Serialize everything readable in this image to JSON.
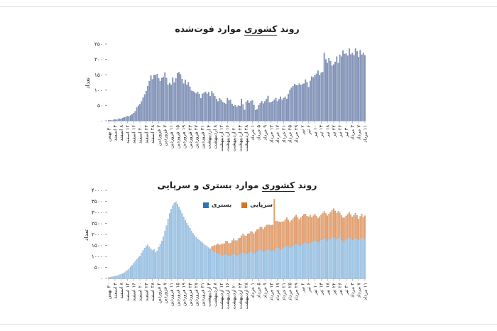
{
  "page": {
    "background": "#ffffff",
    "rule_color": "#e3e3e3"
  },
  "chart_data": [
    {
      "type": "bar",
      "id": "national-deaths-trend",
      "title": {
        "prefix": "روند ",
        "underlined": "کشوری",
        "suffix": " موارد فوت‌شده"
      },
      "ylabel": "تعداد",
      "xlabel": "",
      "grid": false,
      "legend_position": "none",
      "y_axis": {
        "min": 0,
        "max": 250,
        "step": 50,
        "tick_labels": [
          "۰",
          "۵۰",
          "۱۰۰",
          "۱۵۰",
          "۲۰۰",
          "۲۵۰"
        ]
      },
      "x_axis": {
        "label_every": 4,
        "labels": [
          "۳۰ بهمن",
          "۴ اسفند",
          "۸ اسفند",
          "۱۲ اسفند",
          "۱۶ اسفند",
          "۲۰ اسفند",
          "۲۴ اسفند",
          "۲۸ اسفند",
          "۳ فروردین",
          "۷ فروردین",
          "۱۱ فروردین",
          "۱۵ فروردین",
          "۱۹ فروردین",
          "۲۳ فروردین",
          "۲۷ فروردین",
          "۳۱ فروردین",
          "۴ اردیبهشت",
          "۸ اردیبهشت",
          "۱۲ اردیبهشت",
          "۱۶ اردیبهشت",
          "۲۰ اردیبهشت",
          "۲۴ اردیبهشت",
          "۲۸ اردیبهشت",
          "۱ خرداد",
          "۵ خرداد",
          "۹ خرداد",
          "۱۳ خرداد",
          "۱۷ خرداد",
          "۲۱ خرداد",
          "۲۵ خرداد",
          "۲۹ خرداد",
          "۲ تیر",
          "۶ تیر",
          "۱۰ تیر",
          "۱۴ تیر",
          "۱۸ تیر",
          "۲۲ تیر",
          "۲۶ تیر",
          "۳۰ تیر",
          "۳ مرداد",
          "۷ مرداد",
          "۱۱ مرداد"
        ]
      },
      "series": [
        {
          "name": "فوت‌شده",
          "color": "#8b9cc0",
          "border_color": "#5f729e",
          "values": [
            2,
            2,
            1,
            3,
            4,
            3,
            5,
            7,
            6,
            9,
            11,
            12,
            15,
            14,
            17,
            21,
            25,
            31,
            43,
            49,
            54,
            63,
            75,
            85,
            97,
            113,
            129,
            147,
            135,
            149,
            149,
            152,
            138,
            129,
            139,
            143,
            157,
            139,
            117,
            123,
            117,
            141,
            124,
            138,
            155,
            158,
            151,
            136,
            121,
            133,
            117,
            125,
            111,
            98,
            96,
            92,
            89,
            94,
            87,
            73,
            88,
            91,
            94,
            88,
            93,
            80,
            96,
            89,
            80,
            71,
            63,
            73,
            68,
            61,
            58,
            55,
            74,
            66,
            68,
            55,
            48,
            51,
            45,
            50,
            48,
            71,
            53,
            35,
            62,
            66,
            58,
            64,
            66,
            51,
            34,
            37,
            50,
            57,
            64,
            56,
            63,
            71,
            81,
            59,
            60,
            63,
            68,
            74,
            63,
            70,
            78,
            68,
            74,
            78,
            71,
            87,
            100,
            107,
            113,
            120,
            115,
            115,
            121,
            116,
            119,
            121,
            134,
            125,
            109,
            130,
            144,
            141,
            148,
            153,
            163,
            148,
            156,
            159,
            221,
            200,
            188,
            203,
            194,
            179,
            183,
            192,
            209,
            188,
            215,
            209,
            229,
            217,
            219,
            212,
            235,
            216,
            221,
            213,
            235,
            226,
            208,
            230,
            215,
            221,
            213
          ]
        }
      ]
    },
    {
      "type": "bar",
      "id": "national-hospitalized-outpatient-trend",
      "title": {
        "prefix": "روند ",
        "underlined": "کشوری",
        "suffix": " موارد بستری و سرپایی"
      },
      "ylabel": "تعداد",
      "xlabel": "",
      "grid": false,
      "stacked": true,
      "legend_position": "top-inside",
      "legend": [
        {
          "label": "بستری",
          "swatch": "#2e75b6"
        },
        {
          "label": "سرپایی",
          "swatch": "#d9731f"
        }
      ],
      "y_axis": {
        "min": 0,
        "max": 4000,
        "step": 500,
        "tick_labels": [
          "۰",
          "۵۰۰",
          "۱۰۰۰",
          "۱۵۰۰",
          "۲۰۰۰",
          "۲۵۰۰",
          "۳۰۰۰",
          "۳۵۰۰",
          "۴۰۰۰"
        ]
      },
      "x_axis": {
        "label_every": 4,
        "labels": [
          "۳۰ بهمن",
          "۴ اسفند",
          "۸ اسفند",
          "۱۲ اسفند",
          "۱۶ اسفند",
          "۲۰ اسفند",
          "۲۴ اسفند",
          "۲۸ اسفند",
          "۳ فروردین",
          "۷ فروردین",
          "۱۱ فروردین",
          "۱۵ فروردین",
          "۱۹ فروردین",
          "۲۳ فروردین",
          "۲۷ فروردین",
          "۳۱ فروردین",
          "۴ اردیبهشت",
          "۸ اردیبهشت",
          "۱۲ اردیبهشت",
          "۱۶ اردیبهشت",
          "۲۰ اردیبهشت",
          "۲۴ اردیبهشت",
          "۲۸ اردیبهشت",
          "۱ خرداد",
          "۵ خرداد",
          "۹ خرداد",
          "۱۳ خرداد",
          "۱۷ خرداد",
          "۲۱ خرداد",
          "۲۵ خرداد",
          "۲۹ خرداد",
          "۲ تیر",
          "۶ تیر",
          "۱۰ تیر",
          "۱۴ تیر",
          "۱۸ تیر",
          "۲۲ تیر",
          "۲۶ تیر",
          "۳۰ تیر",
          "۳ مرداد",
          "۷ مرداد",
          "۱۱ مرداد"
        ]
      },
      "series": [
        {
          "name": "بستری",
          "color": "#a8cbe8",
          "border_color": "#74a7d4",
          "values": [
            45,
            60,
            70,
            85,
            100,
            120,
            140,
            165,
            190,
            220,
            260,
            310,
            370,
            440,
            520,
            600,
            690,
            780,
            870,
            950,
            1020,
            1150,
            1270,
            1380,
            1460,
            1520,
            1430,
            1350,
            1270,
            1320,
            1180,
            1250,
            1420,
            1560,
            1700,
            1900,
            2150,
            2400,
            2700,
            2950,
            3150,
            3300,
            3420,
            3480,
            3380,
            3250,
            3100,
            2950,
            2800,
            2650,
            2520,
            2400,
            2280,
            2150,
            2050,
            1950,
            1870,
            1800,
            1740,
            1680,
            1620,
            1560,
            1500,
            1450,
            1400,
            1350,
            1300,
            1260,
            1220,
            1180,
            1150,
            1120,
            1090,
            1060,
            1100,
            1150,
            1080,
            1020,
            1060,
            1110,
            1160,
            1100,
            1040,
            1090,
            1140,
            1190,
            1230,
            1170,
            1110,
            1160,
            1210,
            1260,
            1200,
            1140,
            1190,
            1240,
            1290,
            1340,
            1280,
            1220,
            1270,
            1320,
            1370,
            1310,
            1250,
            1300,
            1250,
            1400,
            1450,
            1390,
            1330,
            1380,
            1430,
            1480,
            1530,
            1470,
            1410,
            1460,
            1510,
            1560,
            1610,
            1550,
            1490,
            1540,
            1590,
            1640,
            1690,
            1630,
            1570,
            1620,
            1670,
            1720,
            1770,
            1710,
            1650,
            1700,
            1750,
            1800,
            1850,
            1790,
            1730,
            1780,
            1830,
            1880,
            1930,
            1870,
            1810,
            1860,
            1910,
            1760,
            1700,
            1740,
            1790,
            1840,
            1890,
            1830,
            1770,
            1820,
            1870,
            1810,
            1750,
            1820,
            1880,
            1800,
            1840
          ]
        },
        {
          "name": "سرپایی",
          "color": "#e8a878",
          "border_color": "#d08048",
          "values": [
            0,
            0,
            0,
            0,
            0,
            0,
            0,
            0,
            0,
            0,
            0,
            0,
            0,
            0,
            0,
            0,
            0,
            0,
            0,
            0,
            0,
            0,
            0,
            0,
            0,
            0,
            0,
            0,
            0,
            0,
            0,
            0,
            0,
            0,
            0,
            0,
            0,
            0,
            0,
            0,
            0,
            0,
            0,
            0,
            0,
            0,
            0,
            0,
            0,
            0,
            0,
            0,
            0,
            0,
            0,
            0,
            0,
            0,
            0,
            0,
            0,
            0,
            0,
            0,
            0,
            0,
            150,
            220,
            280,
            350,
            420,
            390,
            460,
            510,
            480,
            550,
            600,
            570,
            540,
            610,
            650,
            620,
            680,
            720,
            690,
            750,
            800,
            770,
            820,
            860,
            830,
            880,
            920,
            890,
            940,
            980,
            950,
            1000,
            1040,
            1010,
            1060,
            1100,
            1070,
            1120,
            1160,
            1130,
            2350,
            1200,
            1150,
            1180,
            1220,
            1190,
            1160,
            1200,
            1230,
            1180,
            1140,
            1170,
            1210,
            1240,
            1270,
            1230,
            1190,
            1220,
            1250,
            1280,
            1240,
            1200,
            1230,
            1260,
            1100,
            1130,
            1160,
            1120,
            1080,
            1110,
            1140,
            1170,
            1200,
            1160,
            1120,
            1150,
            1180,
            1210,
            1240,
            1200,
            1160,
            1190,
            1070,
            1100,
            1060,
            1020,
            1050,
            1080,
            1110,
            1070,
            1030,
            1060,
            1090,
            1050,
            950,
            1000,
            1050,
            980,
            1010
          ]
        }
      ]
    }
  ]
}
